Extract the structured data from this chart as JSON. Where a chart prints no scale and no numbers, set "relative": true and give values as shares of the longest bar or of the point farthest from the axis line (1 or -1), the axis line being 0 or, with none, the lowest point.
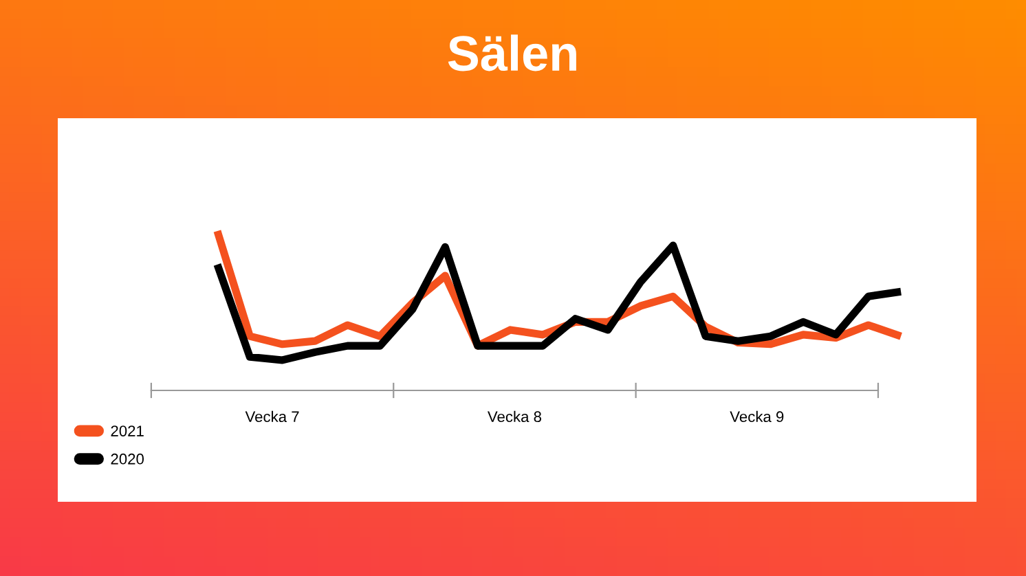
{
  "chart_data": {
    "type": "line",
    "title": "Sälen",
    "relative": true,
    "categories": [
      null,
      null,
      null,
      null,
      null,
      null,
      null,
      null,
      null,
      null,
      null,
      null,
      null,
      null,
      null,
      null,
      null,
      null,
      null,
      null,
      null,
      null
    ],
    "series": [
      {
        "name": "2021",
        "color": "#f4511e",
        "values": [
          1.0,
          0.34,
          0.29,
          0.31,
          0.41,
          0.34,
          0.55,
          0.72,
          0.28,
          0.38,
          0.35,
          0.43,
          0.43,
          0.53,
          0.59,
          0.4,
          0.3,
          0.29,
          0.35,
          0.33,
          0.41,
          0.34
        ]
      },
      {
        "name": "2020",
        "color": "#000000",
        "values": [
          0.79,
          0.21,
          0.19,
          0.24,
          0.28,
          0.28,
          0.51,
          0.9,
          0.28,
          0.28,
          0.28,
          0.45,
          0.38,
          0.68,
          0.91,
          0.34,
          0.31,
          0.34,
          0.43,
          0.35,
          0.59,
          0.62
        ]
      }
    ],
    "annotations": [
      "Vecka 7",
      "Vecka 8",
      "Vecka 9"
    ],
    "legend": "bottom left",
    "grid": false,
    "line_style": "solid"
  }
}
